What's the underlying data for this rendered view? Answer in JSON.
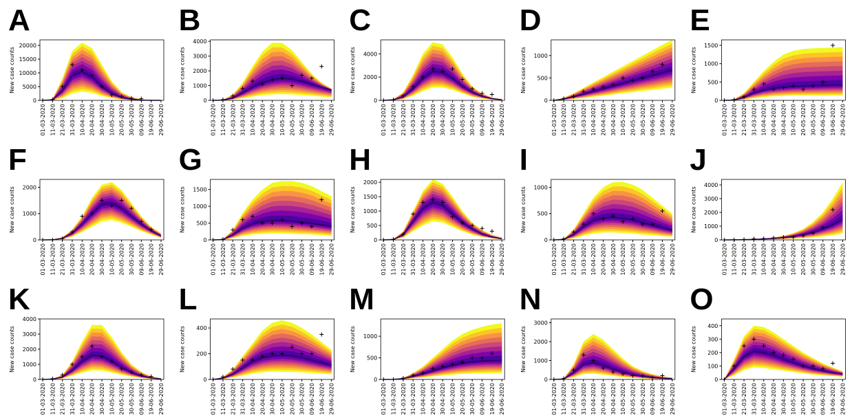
{
  "palette": [
    "#f0f921",
    "#fdc328",
    "#f89441",
    "#e56b5d",
    "#cb4778",
    "#a72197",
    "#7e03a8",
    "#4c02a1"
  ],
  "chart_data": [
    {
      "type": "fan",
      "panel": "A",
      "ylabel": "New case counts",
      "categories": [
        "01-03-2020",
        "11-03-2020",
        "21-03-2020",
        "31-03-2020",
        "10-04-2020",
        "20-04-2020",
        "30-04-2020",
        "10-05-2020",
        "20-05-2020",
        "30-05-2020",
        "09-06-2020",
        "19-06-2020",
        "29-06-2020"
      ],
      "ylim": [
        0,
        22000
      ],
      "yticks": [
        0,
        5000,
        10000,
        15000,
        20000
      ],
      "upper": [
        0,
        500,
        8000,
        18000,
        21000,
        19000,
        13000,
        7000,
        3000,
        1200,
        400,
        100,
        0
      ],
      "median": [
        0,
        200,
        3500,
        9000,
        10500,
        8500,
        5000,
        2500,
        1000,
        400,
        100,
        30,
        0
      ],
      "lower": [
        0,
        50,
        800,
        2500,
        3200,
        2700,
        1600,
        800,
        300,
        100,
        30,
        10,
        0
      ],
      "observed": [
        0,
        300,
        5000,
        13000,
        11000,
        9000,
        5000,
        2000,
        1500,
        800,
        600,
        null,
        null
      ]
    },
    {
      "type": "fan",
      "panel": "B",
      "ylabel": "New case counts",
      "categories": [
        "01-03-2020",
        "11-03-2020",
        "21-03-2020",
        "31-03-2020",
        "10-04-2020",
        "20-04-2020",
        "30-04-2020",
        "10-05-2020",
        "20-05-2020",
        "30-05-2020",
        "09-06-2020",
        "19-06-2020",
        "29-06-2020"
      ],
      "ylim": [
        0,
        4100
      ],
      "yticks": [
        0,
        1000,
        2000,
        3000,
        4000
      ],
      "upper": [
        0,
        50,
        400,
        1200,
        2300,
        3300,
        3900,
        3900,
        3400,
        2600,
        1800,
        1200,
        800
      ],
      "median": [
        0,
        20,
        150,
        500,
        900,
        1200,
        1400,
        1500,
        1450,
        1300,
        1100,
        900,
        700
      ],
      "lower": [
        0,
        5,
        50,
        150,
        250,
        350,
        400,
        420,
        400,
        350,
        300,
        250,
        200
      ],
      "observed": [
        0,
        50,
        300,
        800,
        1300,
        1100,
        1400,
        1500,
        1000,
        1700,
        1500,
        2300,
        null
      ]
    },
    {
      "type": "fan",
      "panel": "C",
      "ylabel": "New case counts",
      "categories": [
        "01-03-2020",
        "11-03-2020",
        "21-03-2020",
        "31-03-2020",
        "10-04-2020",
        "20-04-2020",
        "30-04-2020",
        "10-05-2020",
        "20-05-2020",
        "30-05-2020",
        "09-06-2020",
        "19-06-2020",
        "29-06-2020"
      ],
      "ylim": [
        0,
        5200
      ],
      "yticks": [
        0,
        2000,
        4000
      ],
      "upper": [
        0,
        100,
        700,
        2200,
        4000,
        5000,
        4800,
        3700,
        2300,
        1200,
        600,
        250,
        100
      ],
      "median": [
        0,
        50,
        300,
        1000,
        1900,
        2500,
        2400,
        1900,
        1200,
        700,
        350,
        150,
        50
      ],
      "lower": [
        0,
        20,
        100,
        400,
        800,
        1100,
        1100,
        900,
        600,
        300,
        150,
        60,
        20
      ],
      "observed": [
        0,
        50,
        400,
        1200,
        2000,
        2700,
        2500,
        2700,
        1800,
        1000,
        600,
        500,
        null
      ]
    },
    {
      "type": "fan",
      "panel": "D",
      "ylabel": "New case counts",
      "categories": [
        "01-03-2020",
        "11-03-2020",
        "21-03-2020",
        "31-03-2020",
        "10-04-2020",
        "20-04-2020",
        "30-04-2020",
        "10-05-2020",
        "20-05-2020",
        "30-05-2020",
        "09-06-2020",
        "19-06-2020",
        "29-06-2020"
      ],
      "ylim": [
        0,
        1350
      ],
      "yticks": [
        0,
        500,
        1000
      ],
      "upper": [
        0,
        60,
        160,
        280,
        400,
        520,
        640,
        760,
        880,
        1000,
        1120,
        1240,
        1350
      ],
      "median": [
        0,
        30,
        80,
        140,
        200,
        260,
        320,
        380,
        440,
        500,
        560,
        620,
        680
      ],
      "lower": [
        0,
        10,
        30,
        50,
        80,
        100,
        130,
        160,
        180,
        210,
        230,
        260,
        280
      ],
      "observed": [
        0,
        40,
        90,
        200,
        250,
        300,
        350,
        500,
        450,
        500,
        650,
        800,
        null
      ]
    },
    {
      "type": "fan",
      "panel": "E",
      "ylabel": "New case counts",
      "categories": [
        "01-03-2020",
        "11-03-2020",
        "21-03-2020",
        "31-03-2020",
        "10-04-2020",
        "20-04-2020",
        "30-04-2020",
        "10-05-2020",
        "20-05-2020",
        "30-05-2020",
        "09-06-2020",
        "19-06-2020",
        "29-06-2020"
      ],
      "ylim": [
        0,
        1650
      ],
      "yticks": [
        0,
        500,
        1000,
        1500
      ],
      "upper": [
        0,
        30,
        200,
        500,
        800,
        1050,
        1250,
        1350,
        1400,
        1420,
        1430,
        1440,
        1450
      ],
      "median": [
        0,
        10,
        80,
        200,
        280,
        330,
        360,
        380,
        390,
        400,
        410,
        420,
        420
      ],
      "lower": [
        0,
        3,
        20,
        60,
        90,
        110,
        120,
        130,
        130,
        130,
        130,
        130,
        130
      ],
      "observed": [
        0,
        20,
        100,
        300,
        450,
        300,
        350,
        400,
        300,
        400,
        500,
        1500,
        null
      ]
    },
    {
      "type": "fan",
      "panel": "F",
      "ylabel": "New case counts",
      "categories": [
        "01-03-2020",
        "11-03-2020",
        "21-03-2020",
        "31-03-2020",
        "10-04-2020",
        "20-04-2020",
        "30-04-2020",
        "10-05-2020",
        "20-05-2020",
        "30-05-2020",
        "09-06-2020",
        "19-06-2020",
        "29-06-2020"
      ],
      "ylim": [
        0,
        2300
      ],
      "yticks": [
        0,
        1000,
        2000
      ],
      "upper": [
        0,
        10,
        100,
        400,
        900,
        1600,
        2100,
        2200,
        1900,
        1400,
        900,
        500,
        250
      ],
      "median": [
        0,
        5,
        60,
        250,
        600,
        1000,
        1350,
        1400,
        1200,
        900,
        600,
        350,
        150
      ],
      "lower": [
        0,
        2,
        30,
        120,
        300,
        500,
        700,
        750,
        650,
        500,
        330,
        200,
        80
      ],
      "observed": [
        0,
        0,
        50,
        300,
        900,
        1000,
        1500,
        1300,
        1500,
        1200,
        700,
        400,
        null
      ]
    },
    {
      "type": "fan",
      "panel": "G",
      "ylabel": "New case counts",
      "categories": [
        "01-03-2020",
        "11-03-2020",
        "21-03-2020",
        "31-03-2020",
        "10-04-2020",
        "20-04-2020",
        "30-04-2020",
        "10-05-2020",
        "20-05-2020",
        "30-05-2020",
        "09-06-2020",
        "19-06-2020",
        "29-06-2020"
      ],
      "ylim": [
        0,
        1800
      ],
      "yticks": [
        0,
        500,
        1000,
        1500
      ],
      "upper": [
        0,
        20,
        300,
        800,
        1200,
        1500,
        1700,
        1750,
        1750,
        1700,
        1600,
        1450,
        1300
      ],
      "median": [
        0,
        10,
        150,
        350,
        480,
        550,
        580,
        580,
        560,
        530,
        490,
        450,
        400
      ],
      "lower": [
        0,
        3,
        50,
        120,
        160,
        180,
        190,
        190,
        180,
        170,
        160,
        140,
        120
      ],
      "observed": [
        0,
        20,
        300,
        600,
        700,
        500,
        500,
        600,
        400,
        500,
        400,
        1200,
        null
      ]
    },
    {
      "type": "fan",
      "panel": "H",
      "ylabel": "New case counts",
      "categories": [
        "01-03-2020",
        "11-03-2020",
        "21-03-2020",
        "31-03-2020",
        "10-04-2020",
        "20-04-2020",
        "30-04-2020",
        "10-05-2020",
        "20-05-2020",
        "30-05-2020",
        "09-06-2020",
        "19-06-2020",
        "29-06-2020"
      ],
      "ylim": [
        0,
        2100
      ],
      "yticks": [
        0,
        500,
        1000,
        1500,
        2000
      ],
      "upper": [
        0,
        30,
        300,
        1000,
        1700,
        2100,
        1950,
        1500,
        1000,
        600,
        350,
        180,
        80
      ],
      "median": [
        0,
        15,
        180,
        650,
        1100,
        1300,
        1200,
        900,
        600,
        380,
        200,
        100,
        40
      ],
      "lower": [
        0,
        5,
        80,
        300,
        500,
        650,
        600,
        450,
        300,
        180,
        100,
        50,
        20
      ],
      "observed": [
        0,
        20,
        200,
        900,
        1300,
        1400,
        1300,
        800,
        600,
        500,
        400,
        300,
        null
      ]
    },
    {
      "type": "fan",
      "panel": "I",
      "ylabel": "New case counts",
      "categories": [
        "01-03-2020",
        "11-03-2020",
        "21-03-2020",
        "31-03-2020",
        "10-04-2020",
        "20-04-2020",
        "30-04-2020",
        "10-05-2020",
        "20-05-2020",
        "30-05-2020",
        "09-06-2020",
        "19-06-2020",
        "29-06-2020"
      ],
      "ylim": [
        0,
        1150
      ],
      "yticks": [
        0,
        500,
        1000
      ],
      "upper": [
        0,
        20,
        200,
        500,
        800,
        1000,
        1100,
        1100,
        1050,
        950,
        800,
        650,
        500
      ],
      "median": [
        0,
        10,
        100,
        250,
        370,
        420,
        430,
        410,
        380,
        330,
        280,
        230,
        180
      ],
      "lower": [
        0,
        3,
        30,
        80,
        120,
        140,
        140,
        130,
        120,
        100,
        90,
        70,
        60
      ],
      "observed": [
        0,
        20,
        150,
        300,
        500,
        400,
        450,
        350,
        400,
        300,
        300,
        550,
        null
      ]
    },
    {
      "type": "fan",
      "panel": "J",
      "ylabel": "New case counts",
      "categories": [
        "01-03-2020",
        "11-03-2020",
        "21-03-2020",
        "31-03-2020",
        "10-04-2020",
        "20-04-2020",
        "30-04-2020",
        "10-05-2020",
        "20-05-2020",
        "30-05-2020",
        "09-06-2020",
        "19-06-2020",
        "29-06-2020"
      ],
      "ylim": [
        0,
        4400
      ],
      "yticks": [
        0,
        1000,
        2000,
        3000,
        4000
      ],
      "upper": [
        0,
        10,
        30,
        60,
        100,
        180,
        300,
        500,
        800,
        1300,
        2000,
        3000,
        4200
      ],
      "median": [
        0,
        5,
        20,
        40,
        70,
        110,
        170,
        250,
        380,
        550,
        800,
        1100,
        1500
      ],
      "lower": [
        0,
        2,
        8,
        15,
        25,
        40,
        60,
        90,
        130,
        180,
        250,
        330,
        450
      ],
      "observed": [
        0,
        10,
        30,
        80,
        100,
        150,
        200,
        200,
        300,
        500,
        900,
        2200,
        null
      ]
    },
    {
      "type": "fan",
      "panel": "K",
      "ylabel": "New case counts",
      "categories": [
        "01-03-2020",
        "11-03-2020",
        "21-03-2020",
        "31-03-2020",
        "10-04-2020",
        "20-04-2020",
        "30-04-2020",
        "10-05-2020",
        "20-05-2020",
        "30-05-2020",
        "09-06-2020",
        "19-06-2020",
        "29-06-2020"
      ],
      "ylim": [
        0,
        4000
      ],
      "yticks": [
        0,
        1000,
        2000,
        3000,
        4000
      ],
      "upper": [
        0,
        50,
        300,
        1200,
        2500,
        3600,
        3600,
        2800,
        1800,
        1000,
        500,
        200,
        80
      ],
      "median": [
        0,
        25,
        150,
        600,
        1200,
        1600,
        1550,
        1200,
        800,
        450,
        220,
        100,
        40
      ],
      "lower": [
        0,
        10,
        60,
        250,
        450,
        600,
        580,
        450,
        300,
        180,
        90,
        40,
        15
      ],
      "observed": [
        0,
        50,
        300,
        1000,
        1500,
        2200,
        1500,
        1200,
        700,
        500,
        300,
        200,
        null
      ]
    },
    {
      "type": "fan",
      "panel": "L",
      "ylabel": "New case counts",
      "categories": [
        "01-03-2020",
        "11-03-2020",
        "21-03-2020",
        "31-03-2020",
        "10-04-2020",
        "20-04-2020",
        "30-04-2020",
        "10-05-2020",
        "20-05-2020",
        "30-05-2020",
        "09-06-2020",
        "19-06-2020",
        "29-06-2020"
      ],
      "ylim": [
        0,
        470
      ],
      "yticks": [
        0,
        200,
        400
      ],
      "upper": [
        0,
        20,
        80,
        180,
        280,
        380,
        440,
        460,
        440,
        400,
        350,
        290,
        230
      ],
      "median": [
        0,
        10,
        40,
        90,
        140,
        170,
        185,
        190,
        185,
        170,
        150,
        130,
        110
      ],
      "lower": [
        0,
        3,
        15,
        30,
        45,
        55,
        60,
        60,
        58,
        55,
        50,
        45,
        40
      ],
      "observed": [
        0,
        20,
        80,
        150,
        150,
        180,
        200,
        200,
        250,
        200,
        200,
        350,
        null
      ]
    },
    {
      "type": "fan",
      "panel": "M",
      "ylabel": "New case counts",
      "categories": [
        "01-03-2020",
        "11-03-2020",
        "21-03-2020",
        "31-03-2020",
        "10-04-2020",
        "20-04-2020",
        "30-04-2020",
        "10-05-2020",
        "20-05-2020",
        "30-05-2020",
        "09-06-2020",
        "19-06-2020",
        "29-06-2020"
      ],
      "ylim": [
        0,
        1400
      ],
      "yticks": [
        0,
        500,
        1000
      ],
      "upper": [
        0,
        5,
        40,
        150,
        300,
        500,
        700,
        900,
        1050,
        1150,
        1220,
        1270,
        1300
      ],
      "median": [
        0,
        2,
        20,
        70,
        130,
        200,
        270,
        330,
        380,
        410,
        430,
        440,
        440
      ],
      "lower": [
        0,
        1,
        8,
        25,
        45,
        70,
        90,
        110,
        125,
        135,
        140,
        145,
        145
      ],
      "observed": [
        0,
        0,
        30,
        100,
        150,
        250,
        300,
        350,
        400,
        500,
        500,
        600,
        null
      ]
    },
    {
      "type": "fan",
      "panel": "N",
      "ylabel": "New case counts",
      "categories": [
        "01-03-2020",
        "11-03-2020",
        "21-03-2020",
        "31-03-2020",
        "10-04-2020",
        "20-04-2020",
        "30-04-2020",
        "10-05-2020",
        "20-05-2020",
        "30-05-2020",
        "09-06-2020",
        "19-06-2020",
        "29-06-2020"
      ],
      "ylim": [
        0,
        3200
      ],
      "yticks": [
        0,
        1000,
        2000,
        3000
      ],
      "upper": [
        0,
        50,
        800,
        2000,
        2400,
        2100,
        1600,
        1100,
        700,
        450,
        280,
        170,
        100
      ],
      "median": [
        0,
        25,
        350,
        800,
        900,
        750,
        550,
        380,
        250,
        160,
        100,
        60,
        35
      ],
      "lower": [
        0,
        10,
        120,
        280,
        300,
        250,
        180,
        120,
        80,
        50,
        30,
        20,
        10
      ],
      "observed": [
        0,
        50,
        500,
        1300,
        1000,
        600,
        400,
        300,
        200,
        200,
        100,
        200,
        null
      ]
    },
    {
      "type": "fan",
      "panel": "O",
      "ylabel": "New case counts",
      "categories": [
        "01-03-2020",
        "11-03-2020",
        "21-03-2020",
        "31-03-2020",
        "10-04-2020",
        "20-04-2020",
        "30-04-2020",
        "10-05-2020",
        "20-05-2020",
        "30-05-2020",
        "09-06-2020",
        "19-06-2020",
        "29-06-2020"
      ],
      "ylim": [
        0,
        450
      ],
      "yticks": [
        0,
        100,
        200,
        300,
        400
      ],
      "upper": [
        0,
        150,
        320,
        400,
        390,
        350,
        300,
        250,
        200,
        160,
        120,
        90,
        60
      ],
      "median": [
        0,
        80,
        170,
        210,
        200,
        180,
        150,
        125,
        100,
        80,
        65,
        50,
        40
      ],
      "lower": [
        0,
        30,
        70,
        90,
        85,
        75,
        65,
        55,
        45,
        35,
        30,
        25,
        20
      ],
      "observed": [
        0,
        100,
        250,
        300,
        250,
        200,
        180,
        150,
        100,
        100,
        80,
        120,
        null
      ]
    }
  ]
}
